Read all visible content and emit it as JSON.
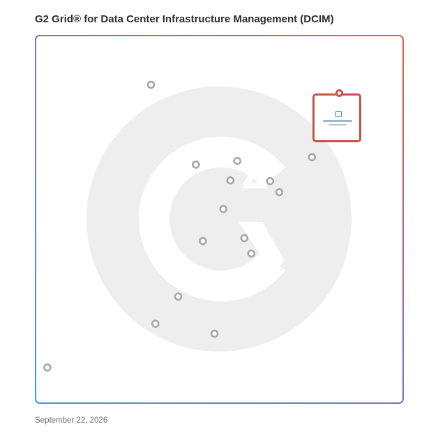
{
  "header": {
    "title": "G2 Grid® for Data Center Infrastructure Management (DCIM)"
  },
  "footer": {
    "date": "September 22, 2026"
  },
  "colors": {
    "top_left": "#6a4fb8",
    "top_right": "#e8603c",
    "bottom_left": "#2fa3d8",
    "bottom_right": "#8a3fa8",
    "point": "#a6a6ad",
    "highlight": "#c9524e",
    "watermark": "#eeeeef"
  },
  "chart_data": {
    "type": "scatter",
    "title": "G2 Grid® for Data Center Infrastructure Management (DCIM)",
    "xlim": [
      0,
      100
    ],
    "ylim": [
      0,
      100
    ],
    "quadrant_split": {
      "x": 50,
      "y": 50
    },
    "grid": false,
    "points": [
      {
        "x": 31.4,
        "y": 86.6
      },
      {
        "x": 43.6,
        "y": 64.9
      },
      {
        "x": 54.9,
        "y": 65.9
      },
      {
        "x": 53.0,
        "y": 60.6
      },
      {
        "x": 63.8,
        "y": 60.4
      },
      {
        "x": 66.3,
        "y": 57.4
      },
      {
        "x": 75.2,
        "y": 66.9
      },
      {
        "x": 51.1,
        "y": 52.8
      },
      {
        "x": 45.5,
        "y": 44.1
      },
      {
        "x": 56.8,
        "y": 44.9
      },
      {
        "x": 58.7,
        "y": 40.7
      },
      {
        "x": 38.8,
        "y": 29.0
      },
      {
        "x": 32.6,
        "y": 21.6
      },
      {
        "x": 48.7,
        "y": 18.9
      },
      {
        "x": 3.2,
        "y": 9.7
      }
    ],
    "highlight": {
      "x": 82.6,
      "y": 84.8
    }
  }
}
